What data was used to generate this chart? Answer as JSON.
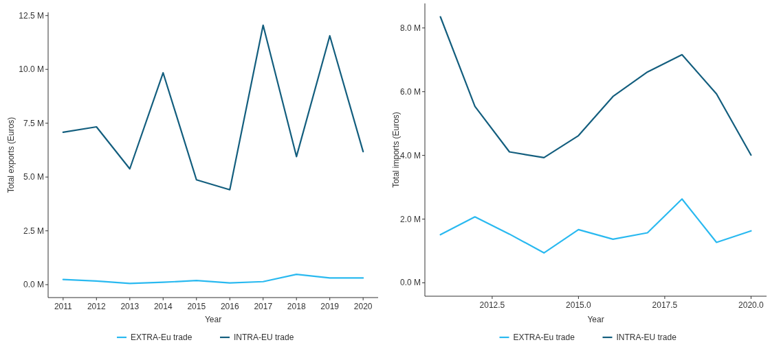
{
  "chart_data": [
    {
      "type": "line",
      "xlabel": "Year",
      "ylabel": "Total exports (Euros)",
      "x": [
        2011,
        2012,
        2013,
        2014,
        2015,
        2016,
        2017,
        2018,
        2019,
        2020
      ],
      "xlim": [
        2010.55,
        2020.45
      ],
      "xticks": [
        2011,
        2012,
        2013,
        2014,
        2015,
        2016,
        2017,
        2018,
        2019,
        2020
      ],
      "ylim": [
        -0.6,
        12.65
      ],
      "yticks": [
        {
          "value": 0,
          "label": "0.0 M"
        },
        {
          "value": 2.5,
          "label": "2.5 M"
        },
        {
          "value": 5,
          "label": "5.0 M"
        },
        {
          "value": 7.5,
          "label": "7.5 M"
        },
        {
          "value": 10,
          "label": "10.0 M"
        },
        {
          "value": 12.5,
          "label": "12.5 M"
        }
      ],
      "grid": false,
      "legend": "bottom",
      "series": [
        {
          "name": "EXTRA-Eu trade",
          "color": "#29b9f0",
          "values": [
            0.24,
            0.17,
            0.06,
            0.11,
            0.19,
            0.08,
            0.14,
            0.48,
            0.31,
            0.31
          ]
        },
        {
          "name": "INTRA-EU trade",
          "color": "#135e7e",
          "values": [
            7.08,
            7.33,
            5.38,
            9.84,
            4.87,
            4.41,
            12.05,
            5.95,
            11.56,
            6.18
          ]
        }
      ]
    },
    {
      "type": "line",
      "xlabel": "Year",
      "ylabel": "Total imports (Euros)",
      "x": [
        2011,
        2012,
        2013,
        2014,
        2015,
        2016,
        2017,
        2018,
        2019,
        2020
      ],
      "xlim": [
        2010.55,
        2020.45
      ],
      "xticks": [
        {
          "value": 2012.5,
          "label": "2012.5"
        },
        {
          "value": 2015,
          "label": "2015.0"
        },
        {
          "value": 2017.5,
          "label": "2017.5"
        },
        {
          "value": 2020,
          "label": "2020.0"
        }
      ],
      "ylim": [
        -0.42,
        8.77
      ],
      "yticks": [
        {
          "value": 0,
          "label": "0.0 M"
        },
        {
          "value": 2,
          "label": "2.0 M"
        },
        {
          "value": 4,
          "label": "4.0 M"
        },
        {
          "value": 6,
          "label": "6.0 M"
        },
        {
          "value": 8,
          "label": "8.0 M"
        }
      ],
      "grid": false,
      "legend": "bottom",
      "series": [
        {
          "name": "EXTRA-Eu trade",
          "color": "#29b9f0",
          "values": [
            1.51,
            2.07,
            1.53,
            0.94,
            1.67,
            1.37,
            1.57,
            2.63,
            1.27,
            1.63
          ]
        },
        {
          "name": "INTRA-EU trade",
          "color": "#135e7e",
          "values": [
            8.35,
            5.54,
            4.11,
            3.93,
            4.62,
            5.85,
            6.62,
            7.16,
            5.93,
            4.01
          ]
        }
      ]
    }
  ]
}
